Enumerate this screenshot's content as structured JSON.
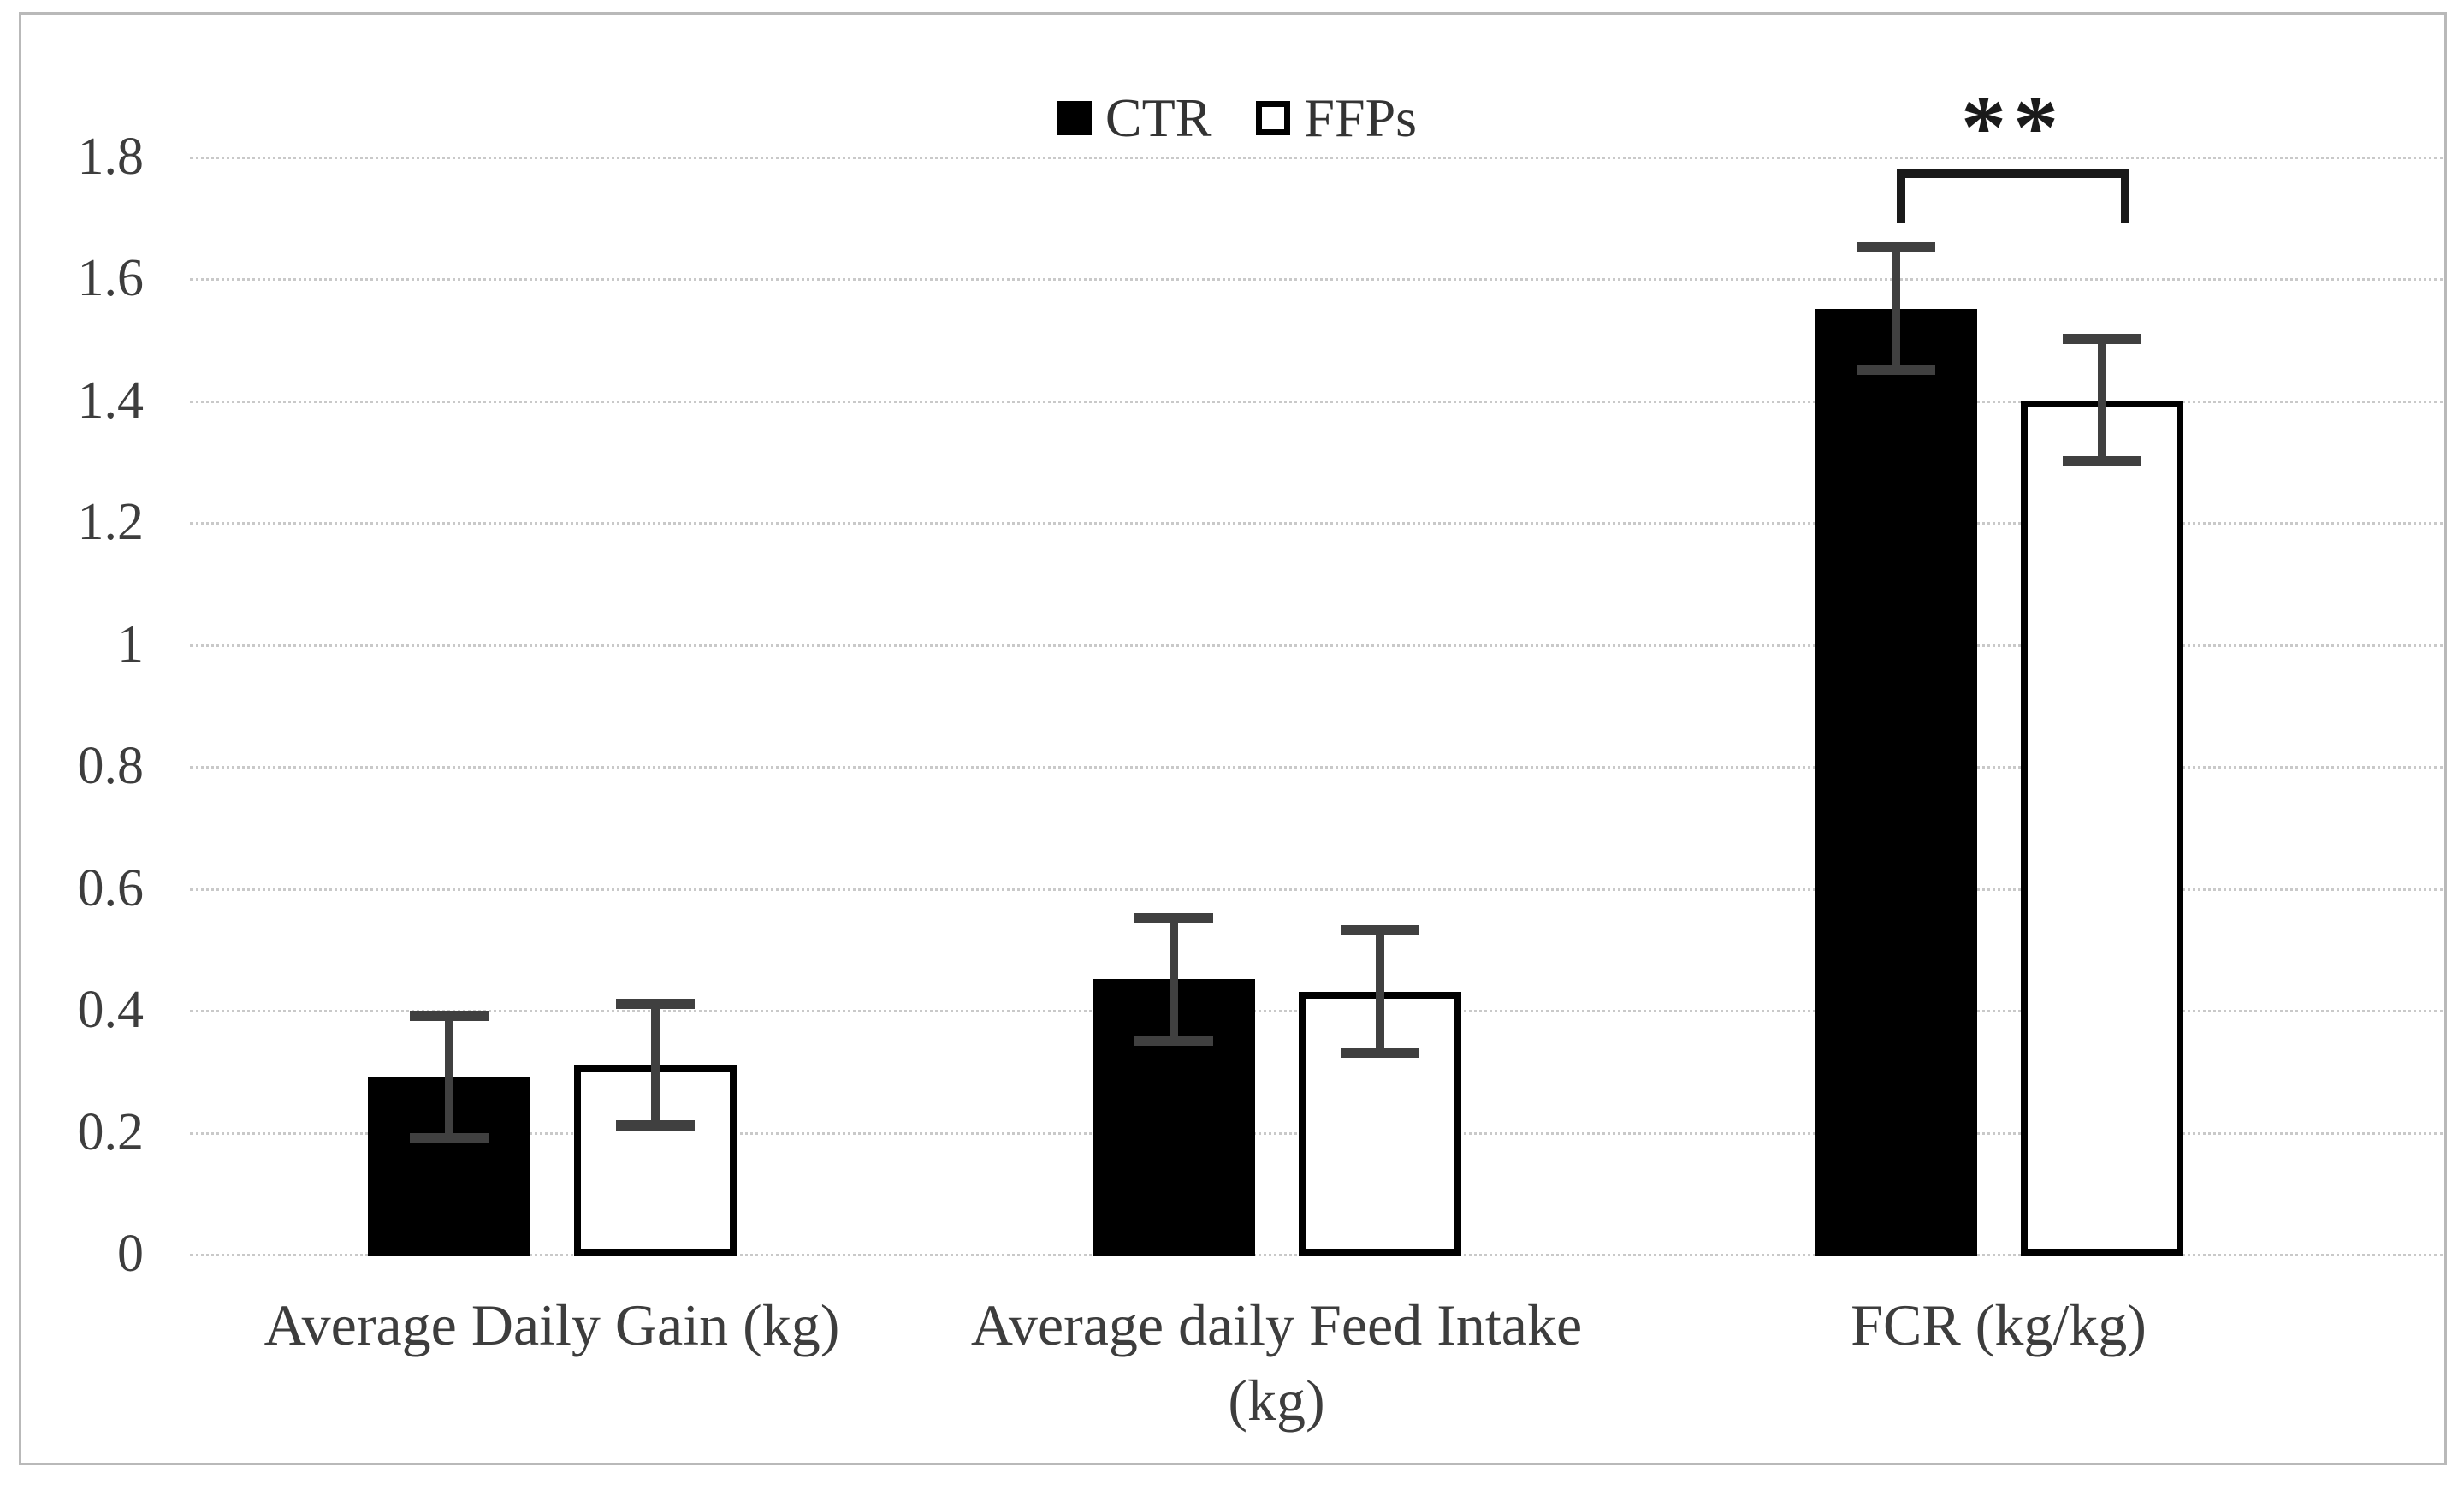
{
  "legend": [
    {
      "label": "CTR",
      "fill": "#000000"
    },
    {
      "label": "FFPs",
      "fill": "#ffffff"
    }
  ],
  "y_axis": {
    "min": 0,
    "max": 1.8,
    "step": 0.2,
    "tick_labels": [
      "0",
      "0.2",
      "0.4",
      "0.6",
      "0.8",
      "1",
      "1.2",
      "1.4",
      "1.6",
      "1.8"
    ]
  },
  "annotation": {
    "stars": "**",
    "over_category": "FCR (kg/kg)"
  },
  "colors": {
    "bar_ctr": "#000000",
    "bar_ffps": "#ffffff",
    "bar_outline": "#000000",
    "error_bar": "#404040",
    "gridline": "#c9c9c9",
    "text": "#3d3d3d"
  },
  "chart_data": {
    "type": "bar",
    "categories": [
      "Average Daily Gain (kg)",
      "Average daily Feed Intake (kg)",
      "FCR (kg/kg)"
    ],
    "category_labels": [
      "Average Daily Gain (kg)",
      "Average daily Feed Intake\n(kg)",
      "FCR (kg/kg)"
    ],
    "series": [
      {
        "name": "CTR",
        "values": [
          0.29,
          0.45,
          1.55
        ],
        "errors": [
          0.1,
          0.1,
          0.1
        ]
      },
      {
        "name": "FFPs",
        "values": [
          0.31,
          0.43,
          1.4
        ],
        "errors": [
          0.1,
          0.1,
          0.1
        ]
      }
    ],
    "title": "",
    "xlabel": "",
    "ylabel": "",
    "ylim": [
      0,
      1.8
    ],
    "grid": true,
    "legend_position": "top-center",
    "significance": {
      "text": "**",
      "category": "FCR (kg/kg)",
      "between": [
        "CTR",
        "FFPs"
      ]
    }
  }
}
